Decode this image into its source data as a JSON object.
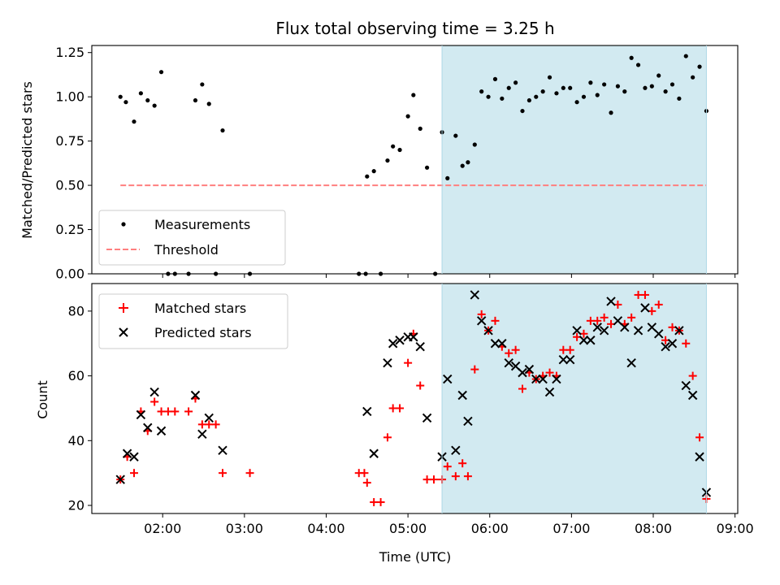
{
  "chart_data": [
    {
      "type": "scatter",
      "title": "Flux total observing time = 3.25 h",
      "ylabel": "Matched/Predicted stars",
      "xlabel": "",
      "xlim": [
        "01:08",
        "09:02"
      ],
      "ylim": [
        0,
        1.29
      ],
      "y_ticks": [
        "0.00",
        "0.25",
        "0.50",
        "0.75",
        "1.00",
        "1.25"
      ],
      "shaded_interval": [
        "05:25",
        "08:39"
      ],
      "shade_color": "#add8e6",
      "legend_position": "lower-left",
      "grid": false,
      "series": [
        {
          "name": "Measurements",
          "style": "dots",
          "color": "#000000",
          "points": [
            [
              "01:29",
              1.0
            ],
            [
              "01:33",
              0.97
            ],
            [
              "01:39",
              0.86
            ],
            [
              "01:44",
              1.02
            ],
            [
              "01:49",
              0.98
            ],
            [
              "01:54",
              0.95
            ],
            [
              "01:59",
              1.14
            ],
            [
              "02:04",
              0.0
            ],
            [
              "02:09",
              0.0
            ],
            [
              "02:19",
              0.0
            ],
            [
              "02:24",
              0.98
            ],
            [
              "02:29",
              1.07
            ],
            [
              "02:34",
              0.96
            ],
            [
              "02:39",
              0.0
            ],
            [
              "02:44",
              0.81
            ],
            [
              "03:04",
              0.0
            ],
            [
              "04:24",
              0.0
            ],
            [
              "04:29",
              0.0
            ],
            [
              "04:30",
              0.55
            ],
            [
              "04:35",
              0.58
            ],
            [
              "04:40",
              0.0
            ],
            [
              "04:45",
              0.64
            ],
            [
              "04:49",
              0.72
            ],
            [
              "04:54",
              0.7
            ],
            [
              "05:00",
              0.89
            ],
            [
              "05:04",
              1.01
            ],
            [
              "05:09",
              0.82
            ],
            [
              "05:14",
              0.6
            ],
            [
              "05:20",
              0.0
            ],
            [
              "05:25",
              0.8
            ],
            [
              "05:29",
              0.54
            ],
            [
              "05:35",
              0.78
            ],
            [
              "05:40",
              0.61
            ],
            [
              "05:44",
              0.63
            ],
            [
              "05:49",
              0.73
            ],
            [
              "05:54",
              1.03
            ],
            [
              "05:59",
              1.0
            ],
            [
              "06:04",
              1.1
            ],
            [
              "06:09",
              0.99
            ],
            [
              "06:14",
              1.05
            ],
            [
              "06:19",
              1.08
            ],
            [
              "06:24",
              0.92
            ],
            [
              "06:29",
              0.98
            ],
            [
              "06:34",
              1.0
            ],
            [
              "06:39",
              1.03
            ],
            [
              "06:44",
              1.11
            ],
            [
              "06:49",
              1.02
            ],
            [
              "06:54",
              1.05
            ],
            [
              "06:59",
              1.05
            ],
            [
              "07:04",
              0.97
            ],
            [
              "07:09",
              1.0
            ],
            [
              "07:14",
              1.08
            ],
            [
              "07:19",
              1.01
            ],
            [
              "07:24",
              1.07
            ],
            [
              "07:29",
              0.91
            ],
            [
              "07:34",
              1.06
            ],
            [
              "07:39",
              1.03
            ],
            [
              "07:44",
              1.22
            ],
            [
              "07:49",
              1.18
            ],
            [
              "07:54",
              1.05
            ],
            [
              "07:59",
              1.06
            ],
            [
              "08:04",
              1.12
            ],
            [
              "08:09",
              1.03
            ],
            [
              "08:14",
              1.07
            ],
            [
              "08:19",
              0.99
            ],
            [
              "08:24",
              1.23
            ],
            [
              "08:29",
              1.11
            ],
            [
              "08:34",
              1.17
            ],
            [
              "08:39",
              0.92
            ]
          ]
        },
        {
          "name": "Threshold",
          "style": "dashed-line",
          "color": "#ff7f7f",
          "points": [
            [
              "01:29",
              0.5
            ],
            [
              "08:39",
              0.5
            ]
          ]
        }
      ]
    },
    {
      "type": "scatter",
      "title": "",
      "ylabel": "Count",
      "xlabel": "Time (UTC)",
      "xlim": [
        "01:08",
        "09:02"
      ],
      "ylim": [
        17.5,
        88.5
      ],
      "y_ticks": [
        "20",
        "40",
        "60",
        "80"
      ],
      "x_ticks": [
        "02:00",
        "03:00",
        "04:00",
        "05:00",
        "06:00",
        "07:00",
        "08:00",
        "09:00"
      ],
      "shaded_interval": [
        "05:25",
        "08:39"
      ],
      "shade_color": "#add8e6",
      "legend_position": "upper-left",
      "grid": false,
      "series": [
        {
          "name": "Matched stars",
          "style": "plus",
          "color": "#ff0000",
          "points": [
            [
              "01:29",
              28
            ],
            [
              "01:34",
              35
            ],
            [
              "01:39",
              30
            ],
            [
              "01:44",
              49
            ],
            [
              "01:49",
              43
            ],
            [
              "01:54",
              52
            ],
            [
              "01:59",
              49
            ],
            [
              "02:04",
              49
            ],
            [
              "02:09",
              49
            ],
            [
              "02:19",
              49
            ],
            [
              "02:24",
              53
            ],
            [
              "02:29",
              45
            ],
            [
              "02:34",
              45
            ],
            [
              "02:39",
              45
            ],
            [
              "02:44",
              30
            ],
            [
              "03:04",
              30
            ],
            [
              "04:24",
              30
            ],
            [
              "04:28",
              30
            ],
            [
              "04:30",
              27
            ],
            [
              "04:35",
              21
            ],
            [
              "04:40",
              21
            ],
            [
              "04:45",
              41
            ],
            [
              "04:49",
              50
            ],
            [
              "04:54",
              50
            ],
            [
              "05:00",
              64
            ],
            [
              "05:04",
              73
            ],
            [
              "05:09",
              57
            ],
            [
              "05:14",
              28
            ],
            [
              "05:19",
              28
            ],
            [
              "05:25",
              28
            ],
            [
              "05:29",
              32
            ],
            [
              "05:35",
              29
            ],
            [
              "05:40",
              33
            ],
            [
              "05:44",
              29
            ],
            [
              "05:49",
              62
            ],
            [
              "05:54",
              79
            ],
            [
              "05:59",
              74
            ],
            [
              "06:04",
              77
            ],
            [
              "06:09",
              69
            ],
            [
              "06:14",
              67
            ],
            [
              "06:19",
              68
            ],
            [
              "06:24",
              56
            ],
            [
              "06:29",
              61
            ],
            [
              "06:34",
              59
            ],
            [
              "06:39",
              60
            ],
            [
              "06:44",
              61
            ],
            [
              "06:49",
              60
            ],
            [
              "06:54",
              68
            ],
            [
              "06:59",
              68
            ],
            [
              "07:04",
              72
            ],
            [
              "07:09",
              73
            ],
            [
              "07:14",
              77
            ],
            [
              "07:19",
              77
            ],
            [
              "07:24",
              78
            ],
            [
              "07:29",
              76
            ],
            [
              "07:34",
              82
            ],
            [
              "07:39",
              76
            ],
            [
              "07:44",
              78
            ],
            [
              "07:49",
              85
            ],
            [
              "07:54",
              85
            ],
            [
              "07:59",
              80
            ],
            [
              "08:04",
              82
            ],
            [
              "08:09",
              71
            ],
            [
              "08:14",
              75
            ],
            [
              "08:19",
              74
            ],
            [
              "08:24",
              70
            ],
            [
              "08:29",
              60
            ],
            [
              "08:34",
              41
            ],
            [
              "08:39",
              22
            ]
          ]
        },
        {
          "name": "Predicted stars",
          "style": "cross",
          "color": "#000000",
          "points": [
            [
              "01:29",
              28
            ],
            [
              "01:34",
              36
            ],
            [
              "01:39",
              35
            ],
            [
              "01:44",
              48
            ],
            [
              "01:49",
              44
            ],
            [
              "01:54",
              55
            ],
            [
              "01:59",
              43
            ],
            [
              "02:24",
              54
            ],
            [
              "02:29",
              42
            ],
            [
              "02:34",
              47
            ],
            [
              "02:44",
              37
            ],
            [
              "04:30",
              49
            ],
            [
              "04:35",
              36
            ],
            [
              "04:45",
              64
            ],
            [
              "04:49",
              70
            ],
            [
              "04:54",
              71
            ],
            [
              "05:00",
              72
            ],
            [
              "05:04",
              72
            ],
            [
              "05:09",
              69
            ],
            [
              "05:14",
              47
            ],
            [
              "05:25",
              35
            ],
            [
              "05:29",
              59
            ],
            [
              "05:35",
              37
            ],
            [
              "05:40",
              54
            ],
            [
              "05:44",
              46
            ],
            [
              "05:49",
              85
            ],
            [
              "05:54",
              77
            ],
            [
              "05:59",
              74
            ],
            [
              "06:04",
              70
            ],
            [
              "06:09",
              70
            ],
            [
              "06:14",
              64
            ],
            [
              "06:19",
              63
            ],
            [
              "06:24",
              61
            ],
            [
              "06:29",
              62
            ],
            [
              "06:34",
              59
            ],
            [
              "06:39",
              59
            ],
            [
              "06:44",
              55
            ],
            [
              "06:49",
              59
            ],
            [
              "06:54",
              65
            ],
            [
              "06:59",
              65
            ],
            [
              "07:04",
              74
            ],
            [
              "07:09",
              71
            ],
            [
              "07:14",
              71
            ],
            [
              "07:19",
              75
            ],
            [
              "07:24",
              74
            ],
            [
              "07:29",
              83
            ],
            [
              "07:34",
              77
            ],
            [
              "07:39",
              75
            ],
            [
              "07:44",
              64
            ],
            [
              "07:49",
              74
            ],
            [
              "07:54",
              81
            ],
            [
              "07:59",
              75
            ],
            [
              "08:04",
              73
            ],
            [
              "08:09",
              69
            ],
            [
              "08:14",
              70
            ],
            [
              "08:19",
              74
            ],
            [
              "08:24",
              57
            ],
            [
              "08:29",
              54
            ],
            [
              "08:34",
              35
            ],
            [
              "08:39",
              24
            ]
          ]
        }
      ]
    }
  ]
}
